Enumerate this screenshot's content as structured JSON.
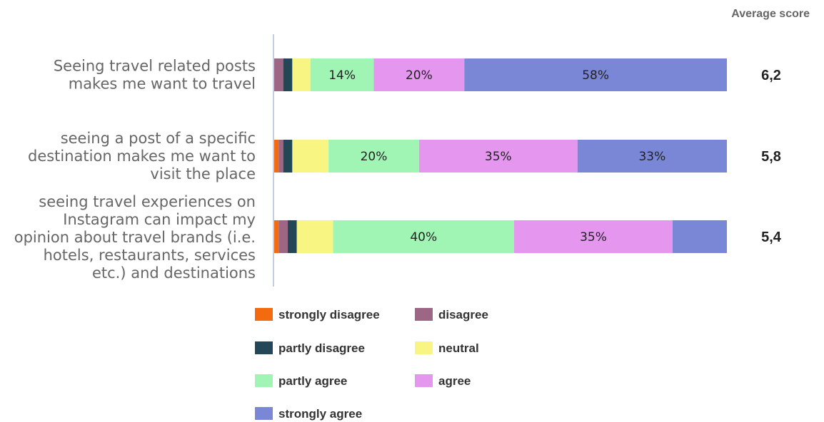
{
  "chart_data": {
    "type": "bar",
    "orientation": "horizontal",
    "stacked": true,
    "percent_scale": true,
    "xlim": [
      0,
      100
    ],
    "grid": false,
    "legend_position": "bottom",
    "categories": [
      [
        "Seeing travel related posts",
        "makes me want to travel"
      ],
      [
        "seeing a post of a specific",
        "destination makes me want to",
        "visit the place"
      ],
      [
        "seeing travel experiences on",
        "Instagram can impact my",
        "opinion about travel brands (i.e.",
        "hotels, restaurants, services",
        "etc.) and destinations"
      ]
    ],
    "series": [
      {
        "name": "strongly disagree",
        "color": "#f36a0f",
        "values": [
          0,
          1,
          1
        ],
        "labels": [
          "",
          "",
          ""
        ]
      },
      {
        "name": "disagree",
        "color": "#9e6685",
        "values": [
          2,
          1,
          2
        ],
        "labels": [
          "",
          "",
          ""
        ]
      },
      {
        "name": "partly disagree",
        "color": "#244757",
        "values": [
          2,
          2,
          2
        ],
        "labels": [
          "",
          "",
          ""
        ]
      },
      {
        "name": "neutral",
        "color": "#f8f582",
        "values": [
          4,
          8,
          8
        ],
        "labels": [
          "",
          "",
          ""
        ]
      },
      {
        "name": "partly agree",
        "color": "#a1f5b4",
        "values": [
          14,
          20,
          40
        ],
        "labels": [
          "14%",
          "20%",
          "40%"
        ]
      },
      {
        "name": "agree",
        "color": "#e597ef",
        "values": [
          20,
          35,
          35
        ],
        "labels": [
          "20%",
          "35%",
          "35%"
        ]
      },
      {
        "name": "strongly agree",
        "color": "#7a86d6",
        "values": [
          58,
          33,
          12
        ],
        "labels": [
          "58%",
          "33%",
          ""
        ]
      }
    ],
    "average_score": {
      "title": "Average score",
      "values": [
        "6,2",
        "5,8",
        "5,4"
      ]
    }
  }
}
